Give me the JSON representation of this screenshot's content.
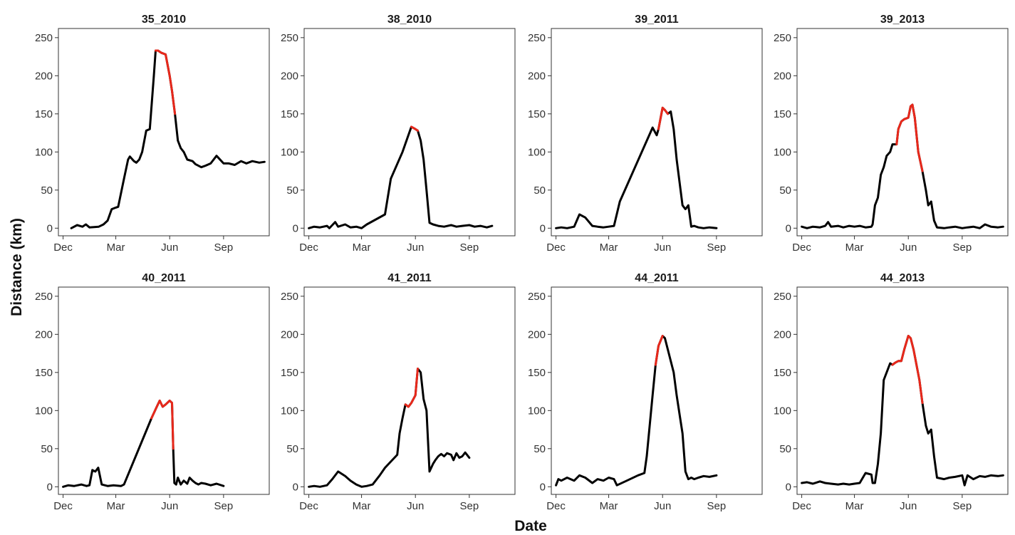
{
  "chart_data": {
    "type": "line",
    "xlabel": "Date",
    "ylabel": "Distance (km)",
    "ylim": [
      0,
      250
    ],
    "y_ticks": [
      0,
      50,
      100,
      150,
      200,
      250
    ],
    "x_ticks": [
      "Dec",
      "Mar",
      "Jun",
      "Sep"
    ],
    "x_tick_dates": [
      "12-01",
      "03-01",
      "06-01",
      "09-01"
    ],
    "grid": false,
    "legend": "none",
    "colors": {
      "default": "#000000",
      "highlight": "#e8281b"
    },
    "panels": [
      {
        "title": "35_2010",
        "x": [
          "12-15",
          "12-25",
          "01-03",
          "01-09",
          "01-15",
          "01-31",
          "02-08",
          "02-15",
          "02-22",
          "03-01",
          "03-05",
          "03-15",
          "03-22",
          "03-25",
          "04-01",
          "04-05",
          "04-10",
          "04-15",
          "04-22",
          "04-28",
          "05-05",
          "05-08",
          "05-12",
          "05-18",
          "05-25",
          "06-01",
          "06-05",
          "06-10",
          "06-15",
          "06-20",
          "06-25",
          "07-01",
          "07-10",
          "07-15",
          "07-25",
          "08-01",
          "08-10",
          "08-20",
          "09-01",
          "09-10",
          "09-20",
          "10-01",
          "10-10",
          "10-20",
          "11-01",
          "11-10"
        ],
        "y": [
          0,
          4,
          2,
          5,
          1,
          2,
          5,
          10,
          25,
          27,
          28,
          65,
          90,
          94,
          88,
          86,
          90,
          100,
          128,
          130,
          200,
          233,
          233,
          230,
          228,
          200,
          180,
          150,
          115,
          105,
          100,
          90,
          88,
          84,
          80,
          82,
          85,
          95,
          85,
          85,
          83,
          88,
          85,
          88,
          86,
          87
        ],
        "highlight": [
          [
            21,
            27
          ]
        ]
      },
      {
        "title": "38_2010",
        "x": [
          "12-01",
          "12-10",
          "12-20",
          "01-01",
          "01-05",
          "01-10",
          "01-15",
          "01-20",
          "02-01",
          "02-10",
          "02-20",
          "03-01",
          "03-10",
          "04-10",
          "04-20",
          "05-10",
          "05-25",
          "06-01",
          "06-05",
          "06-10",
          "06-15",
          "06-20",
          "06-25",
          "07-01",
          "07-10",
          "07-20",
          "08-01",
          "08-10",
          "08-20",
          "09-01",
          "09-10",
          "09-20",
          "10-01",
          "10-10"
        ],
        "y": [
          0,
          2,
          1,
          3,
          0,
          4,
          8,
          2,
          5,
          1,
          2,
          0,
          5,
          18,
          65,
          100,
          133,
          130,
          128,
          115,
          90,
          50,
          7,
          5,
          3,
          2,
          4,
          2,
          3,
          4,
          2,
          3,
          1,
          3
        ],
        "highlight": [
          [
            16,
            18
          ]
        ]
      },
      {
        "title": "39_2011",
        "x": [
          "12-01",
          "12-10",
          "12-20",
          "01-01",
          "01-10",
          "01-20",
          "02-01",
          "02-10",
          "02-20",
          "03-01",
          "03-10",
          "03-20",
          "05-15",
          "05-22",
          "05-25",
          "06-01",
          "06-05",
          "06-10",
          "06-15",
          "06-20",
          "06-25",
          "06-30",
          "07-05",
          "07-10",
          "07-15",
          "07-20",
          "07-25",
          "08-01",
          "08-10",
          "08-20",
          "09-01"
        ],
        "y": [
          0,
          1,
          0,
          2,
          18,
          14,
          3,
          2,
          1,
          2,
          3,
          35,
          132,
          122,
          130,
          158,
          155,
          150,
          153,
          130,
          90,
          60,
          30,
          25,
          30,
          2,
          3,
          1,
          0,
          1,
          0
        ],
        "highlight": [
          [
            14,
            17
          ]
        ]
      },
      {
        "title": "39_2013",
        "x": [
          "12-01",
          "12-10",
          "12-20",
          "01-01",
          "01-10",
          "01-15",
          "01-20",
          "02-01",
          "02-10",
          "02-20",
          "03-01",
          "03-10",
          "03-20",
          "03-30",
          "04-01",
          "04-05",
          "04-10",
          "04-15",
          "04-20",
          "04-25",
          "05-01",
          "05-05",
          "05-12",
          "05-15",
          "05-20",
          "05-25",
          "06-01",
          "06-05",
          "06-08",
          "06-12",
          "06-18",
          "06-25",
          "07-01",
          "07-05",
          "07-10",
          "07-15",
          "07-20",
          "08-01",
          "08-10",
          "08-20",
          "09-01",
          "09-10",
          "09-20",
          "10-01",
          "10-10",
          "10-20",
          "11-01",
          "11-10"
        ],
        "y": [
          2,
          0,
          2,
          1,
          3,
          8,
          2,
          3,
          1,
          3,
          2,
          3,
          1,
          2,
          5,
          30,
          40,
          70,
          80,
          95,
          100,
          110,
          110,
          130,
          140,
          143,
          145,
          160,
          162,
          145,
          100,
          75,
          50,
          30,
          35,
          10,
          1,
          0,
          1,
          2,
          0,
          1,
          2,
          0,
          5,
          2,
          1,
          2
        ],
        "highlight": [
          [
            22,
            31
          ]
        ]
      },
      {
        "title": "40_2011",
        "x": [
          "12-01",
          "12-10",
          "12-20",
          "01-01",
          "01-10",
          "01-15",
          "01-20",
          "01-25",
          "01-30",
          "02-05",
          "02-15",
          "02-25",
          "03-10",
          "03-15",
          "05-01",
          "05-10",
          "05-15",
          "05-20",
          "05-25",
          "06-01",
          "06-05",
          "06-07",
          "06-09",
          "06-12",
          "06-15",
          "06-20",
          "06-25",
          "07-01",
          "07-05",
          "07-10",
          "07-15",
          "07-20",
          "07-25",
          "08-01",
          "08-10",
          "08-20",
          "09-01"
        ],
        "y": [
          0,
          2,
          1,
          3,
          1,
          2,
          22,
          20,
          25,
          3,
          1,
          2,
          1,
          3,
          90,
          105,
          113,
          105,
          108,
          113,
          110,
          50,
          5,
          3,
          12,
          3,
          8,
          4,
          12,
          8,
          5,
          3,
          5,
          4,
          2,
          4,
          1
        ],
        "highlight": [
          [
            14,
            21
          ]
        ]
      },
      {
        "title": "41_2011",
        "x": [
          "12-01",
          "12-10",
          "12-20",
          "01-01",
          "01-10",
          "01-20",
          "02-01",
          "02-10",
          "02-20",
          "03-01",
          "03-10",
          "03-20",
          "04-01",
          "04-10",
          "05-01",
          "05-05",
          "05-10",
          "05-15",
          "05-20",
          "05-25",
          "06-01",
          "06-05",
          "06-10",
          "06-15",
          "06-20",
          "06-25",
          "07-01",
          "07-05",
          "07-10",
          "07-15",
          "07-20",
          "07-25",
          "08-01",
          "08-05",
          "08-10",
          "08-15",
          "08-20",
          "08-25",
          "09-01"
        ],
        "y": [
          0,
          1,
          0,
          2,
          10,
          20,
          14,
          8,
          3,
          0,
          1,
          3,
          15,
          25,
          42,
          70,
          90,
          108,
          105,
          110,
          120,
          155,
          150,
          115,
          100,
          20,
          30,
          35,
          40,
          43,
          40,
          44,
          42,
          35,
          44,
          38,
          40,
          45,
          38
        ],
        "highlight": [
          [
            17,
            21
          ]
        ]
      },
      {
        "title": "44_2011",
        "x": [
          "12-01",
          "12-05",
          "12-10",
          "12-20",
          "01-01",
          "01-10",
          "01-20",
          "02-01",
          "02-10",
          "02-20",
          "03-01",
          "03-10",
          "03-15",
          "04-01",
          "04-20",
          "05-01",
          "05-05",
          "05-10",
          "05-15",
          "05-20",
          "05-25",
          "06-01",
          "06-05",
          "06-10",
          "06-15",
          "06-20",
          "06-25",
          "07-01",
          "07-05",
          "07-10",
          "07-15",
          "07-20",
          "07-25",
          "08-01",
          "08-10",
          "08-20",
          "09-01"
        ],
        "y": [
          2,
          10,
          8,
          12,
          8,
          15,
          12,
          5,
          10,
          8,
          12,
          10,
          2,
          8,
          15,
          18,
          40,
          80,
          120,
          160,
          185,
          198,
          195,
          180,
          165,
          150,
          120,
          90,
          70,
          20,
          10,
          12,
          10,
          12,
          14,
          13,
          15
        ],
        "highlight": [
          [
            19,
            21
          ]
        ]
      },
      {
        "title": "44_2013",
        "x": [
          "12-01",
          "12-10",
          "12-20",
          "01-01",
          "01-10",
          "01-20",
          "02-01",
          "02-10",
          "02-20",
          "03-01",
          "03-10",
          "03-20",
          "03-30",
          "04-01",
          "04-05",
          "04-10",
          "04-15",
          "04-20",
          "05-01",
          "05-05",
          "05-10",
          "05-15",
          "05-20",
          "05-25",
          "06-01",
          "06-05",
          "06-10",
          "06-15",
          "06-20",
          "06-25",
          "07-01",
          "07-05",
          "07-10",
          "07-15",
          "07-20",
          "08-01",
          "08-10",
          "08-20",
          "09-01",
          "09-05",
          "09-10",
          "09-20",
          "10-01",
          "10-10",
          "10-20",
          "11-01",
          "11-10"
        ],
        "y": [
          5,
          6,
          4,
          7,
          5,
          4,
          3,
          4,
          3,
          4,
          5,
          18,
          16,
          5,
          5,
          30,
          70,
          140,
          162,
          160,
          163,
          165,
          165,
          180,
          198,
          195,
          180,
          160,
          140,
          110,
          80,
          70,
          75,
          40,
          12,
          10,
          12,
          13,
          15,
          2,
          15,
          10,
          14,
          13,
          15,
          14,
          15
        ],
        "highlight": [
          [
            19,
            29
          ]
        ]
      }
    ]
  }
}
